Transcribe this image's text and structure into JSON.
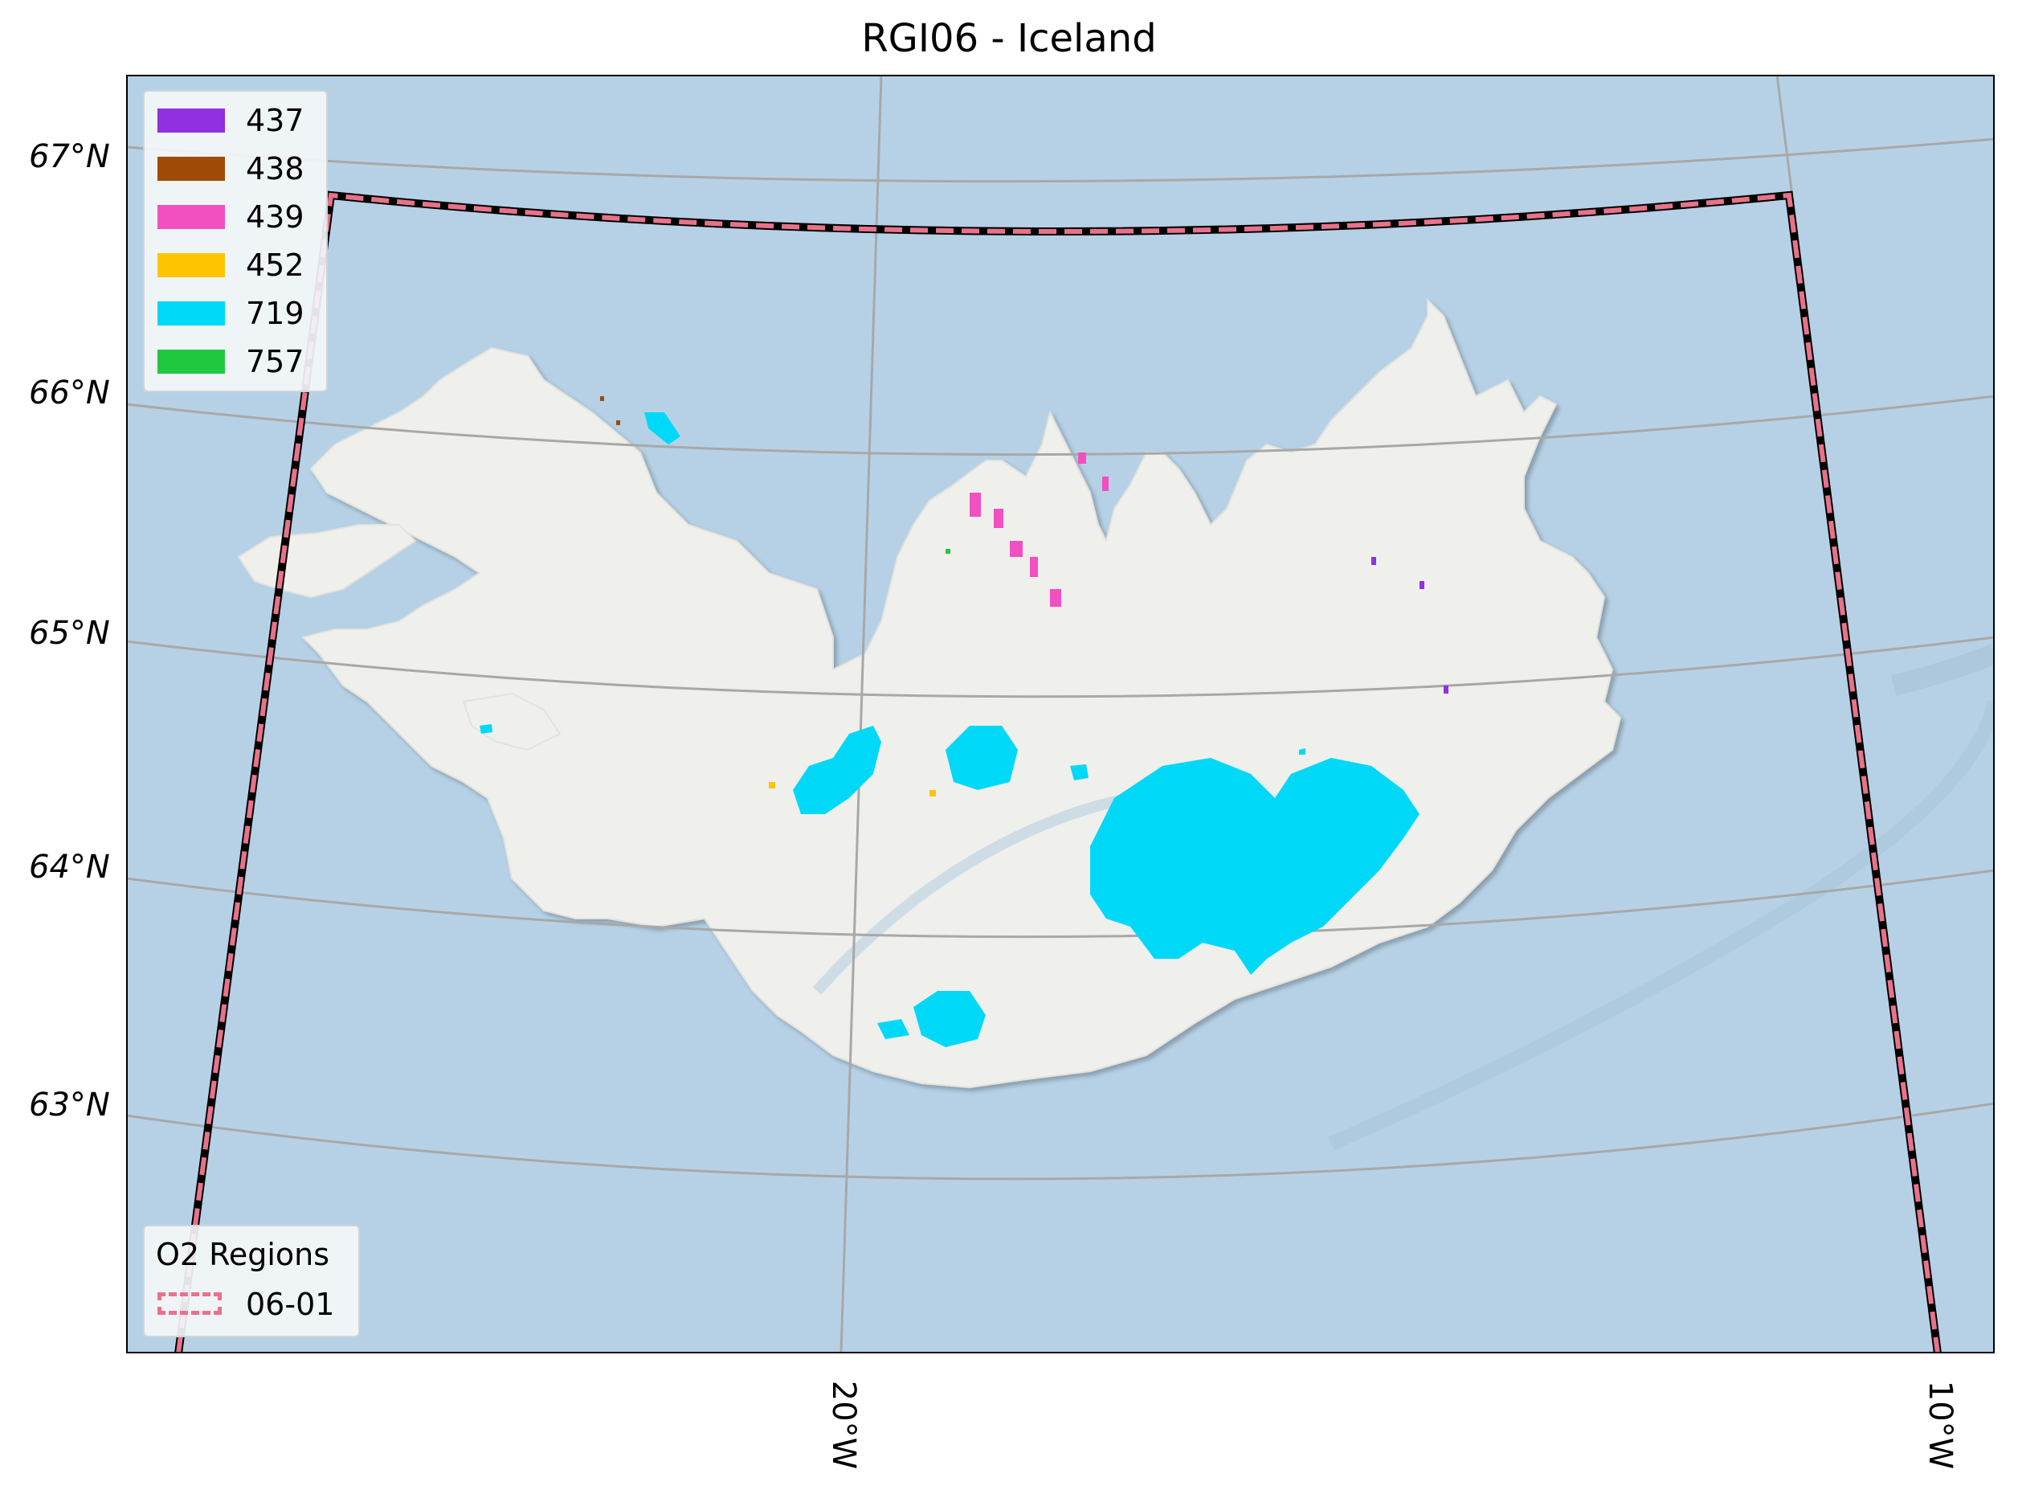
{
  "title": "RGI06 - Iceland",
  "lat_ticks": [
    "67°N",
    "66°N",
    "65°N",
    "64°N",
    "63°N"
  ],
  "lon_ticks": [
    "20°W",
    "10°W"
  ],
  "legend": {
    "items": [
      {
        "label": "437",
        "color": "#9030e0"
      },
      {
        "label": "438",
        "color": "#a04a08"
      },
      {
        "label": "439",
        "color": "#f050c0"
      },
      {
        "label": "452",
        "color": "#ffc400"
      },
      {
        "label": "719",
        "color": "#00d8f8"
      },
      {
        "label": "757",
        "color": "#20c840"
      }
    ]
  },
  "o2_legend": {
    "title": "O2 Regions",
    "items": [
      {
        "label": "06-01",
        "color": "#e8728a",
        "style": "dashed"
      }
    ]
  },
  "colors": {
    "ocean": "#b6d1e6",
    "land": "#eeeeec",
    "graticule": "#a8a8a8",
    "region_outline": "#e8728a",
    "glacier_main": "#00d8f8"
  }
}
